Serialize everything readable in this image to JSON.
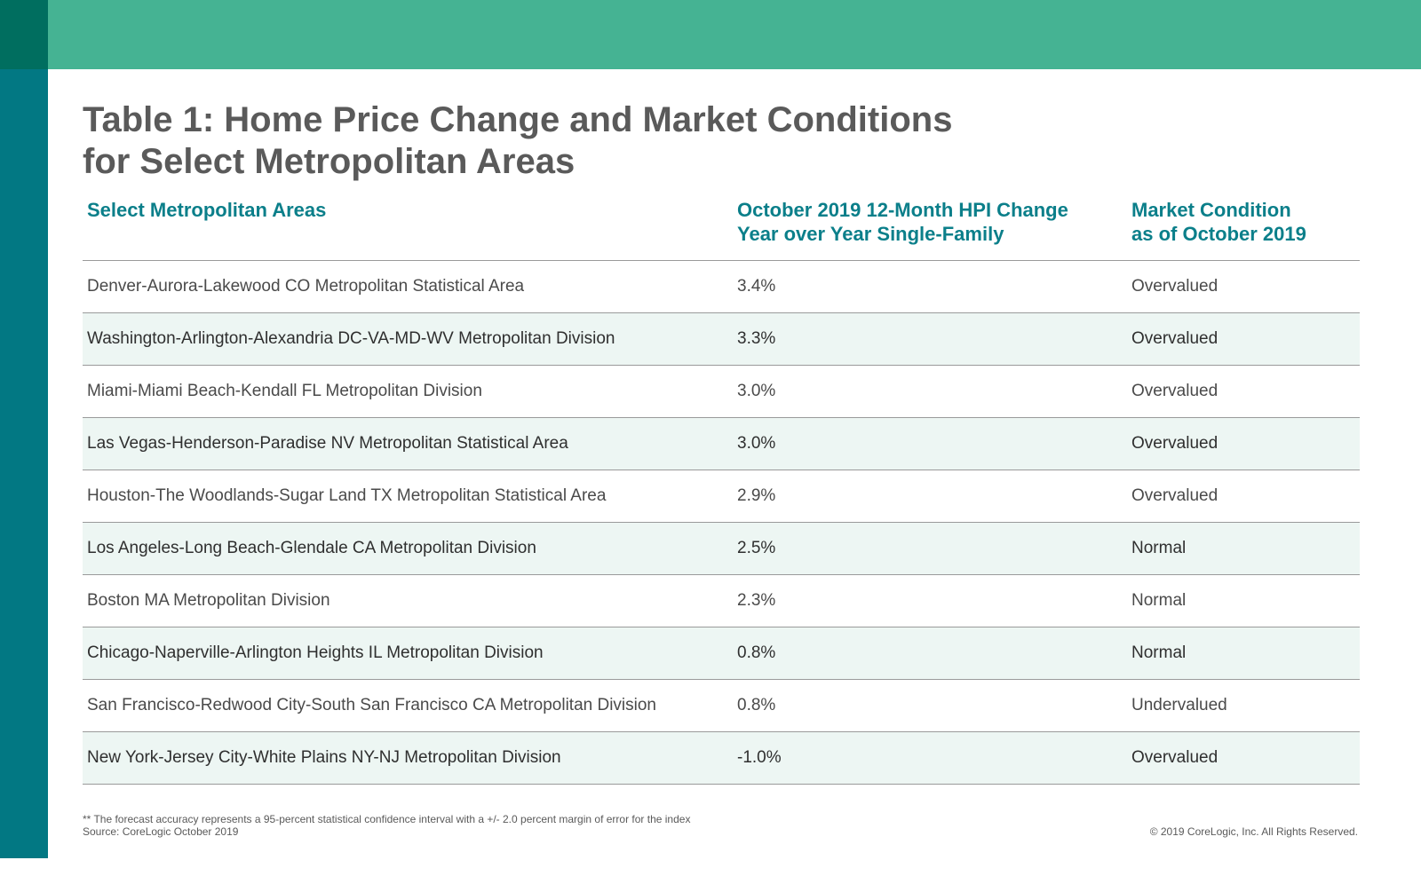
{
  "title": {
    "line1": "Table 1: Home Price Change and Market Conditions",
    "line2": "for Select Metropolitan Areas"
  },
  "table": {
    "headers": {
      "area": "Select Metropolitan Areas",
      "hpi_line1": "October 2019 12-Month HPI Change",
      "hpi_line2": "Year over Year Single-Family",
      "condition_line1": "Market Condition",
      "condition_line2": "as of October 2019"
    },
    "rows": [
      {
        "area": "Denver-Aurora-Lakewood CO Metropolitan Statistical Area",
        "hpi": "3.4%",
        "condition": "Overvalued"
      },
      {
        "area": "Washington-Arlington-Alexandria DC-VA-MD-WV Metropolitan Division",
        "hpi": "3.3%",
        "condition": "Overvalued"
      },
      {
        "area": "Miami-Miami Beach-Kendall FL Metropolitan Division",
        "hpi": "3.0%",
        "condition": "Overvalued"
      },
      {
        "area": "Las Vegas-Henderson-Paradise NV Metropolitan Statistical Area",
        "hpi": "3.0%",
        "condition": "Overvalued"
      },
      {
        "area": "Houston-The Woodlands-Sugar Land TX Metropolitan Statistical Area",
        "hpi": "2.9%",
        "condition": "Overvalued"
      },
      {
        "area": "Los Angeles-Long Beach-Glendale CA Metropolitan Division",
        "hpi": "2.5%",
        "condition": "Normal"
      },
      {
        "area": "Boston MA Metropolitan Division",
        "hpi": "2.3%",
        "condition": "Normal"
      },
      {
        "area": "Chicago-Naperville-Arlington Heights IL Metropolitan Division",
        "hpi": "0.8%",
        "condition": "Normal"
      },
      {
        "area": "San Francisco-Redwood City-South San Francisco CA Metropolitan Division",
        "hpi": "0.8%",
        "condition": "Undervalued"
      },
      {
        "area": "New York-Jersey City-White Plains NY-NJ Metropolitan Division",
        "hpi": "-1.0%",
        "condition": "Overvalued"
      }
    ]
  },
  "footnote": {
    "line1": "** The forecast accuracy represents a 95-percent statistical confidence interval with a +/- 2.0 percent margin of error for the index",
    "line2": "Source: CoreLogic October 2019"
  },
  "copyright": "© 2019 CoreLogic, Inc. All Rights Reserved.",
  "colors": {
    "top_band": "#45b393",
    "side_bar": "#027883",
    "corner_block": "#006e5f",
    "header_text": "#0b7f8a",
    "row_shade": "#edf6f3"
  }
}
